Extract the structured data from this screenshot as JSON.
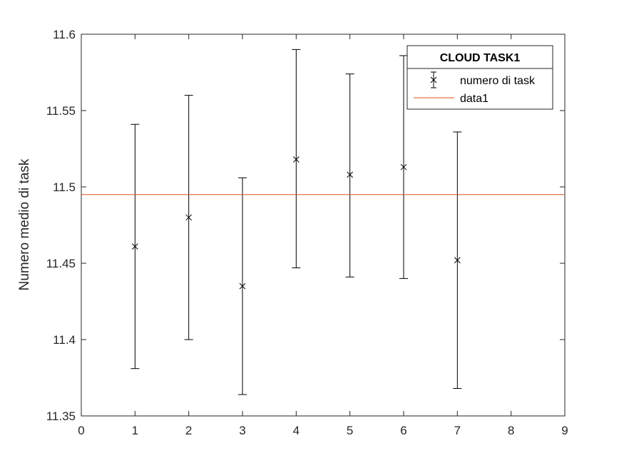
{
  "chart_data": {
    "type": "scatter",
    "title": "",
    "xlabel": "",
    "ylabel": "Numero medio di task",
    "xlim": [
      0,
      9
    ],
    "ylim": [
      11.35,
      11.6
    ],
    "xticks": [
      "0",
      "1",
      "2",
      "3",
      "4",
      "5",
      "6",
      "7",
      "8",
      "9"
    ],
    "yticks": [
      "11.35",
      "11.4",
      "11.45",
      "11.5",
      "11.55",
      "11.6"
    ],
    "grid": false,
    "legend": {
      "title": "CLOUD TASK1",
      "position": "top-right",
      "entries": [
        "numero di task",
        "data1"
      ]
    },
    "series": [
      {
        "name": "numero di task",
        "marker": "x",
        "color": "#000000",
        "x": [
          1,
          2,
          3,
          4,
          5,
          6,
          7
        ],
        "y": [
          11.461,
          11.48,
          11.435,
          11.518,
          11.508,
          11.513,
          11.452
        ],
        "lower": [
          11.381,
          11.4,
          11.364,
          11.447,
          11.441,
          11.44,
          11.368
        ],
        "upper": [
          11.541,
          11.56,
          11.506,
          11.59,
          11.574,
          11.586,
          11.536
        ]
      },
      {
        "name": "data1",
        "type": "hline",
        "color": "#d95319",
        "y": 11.495
      }
    ]
  }
}
